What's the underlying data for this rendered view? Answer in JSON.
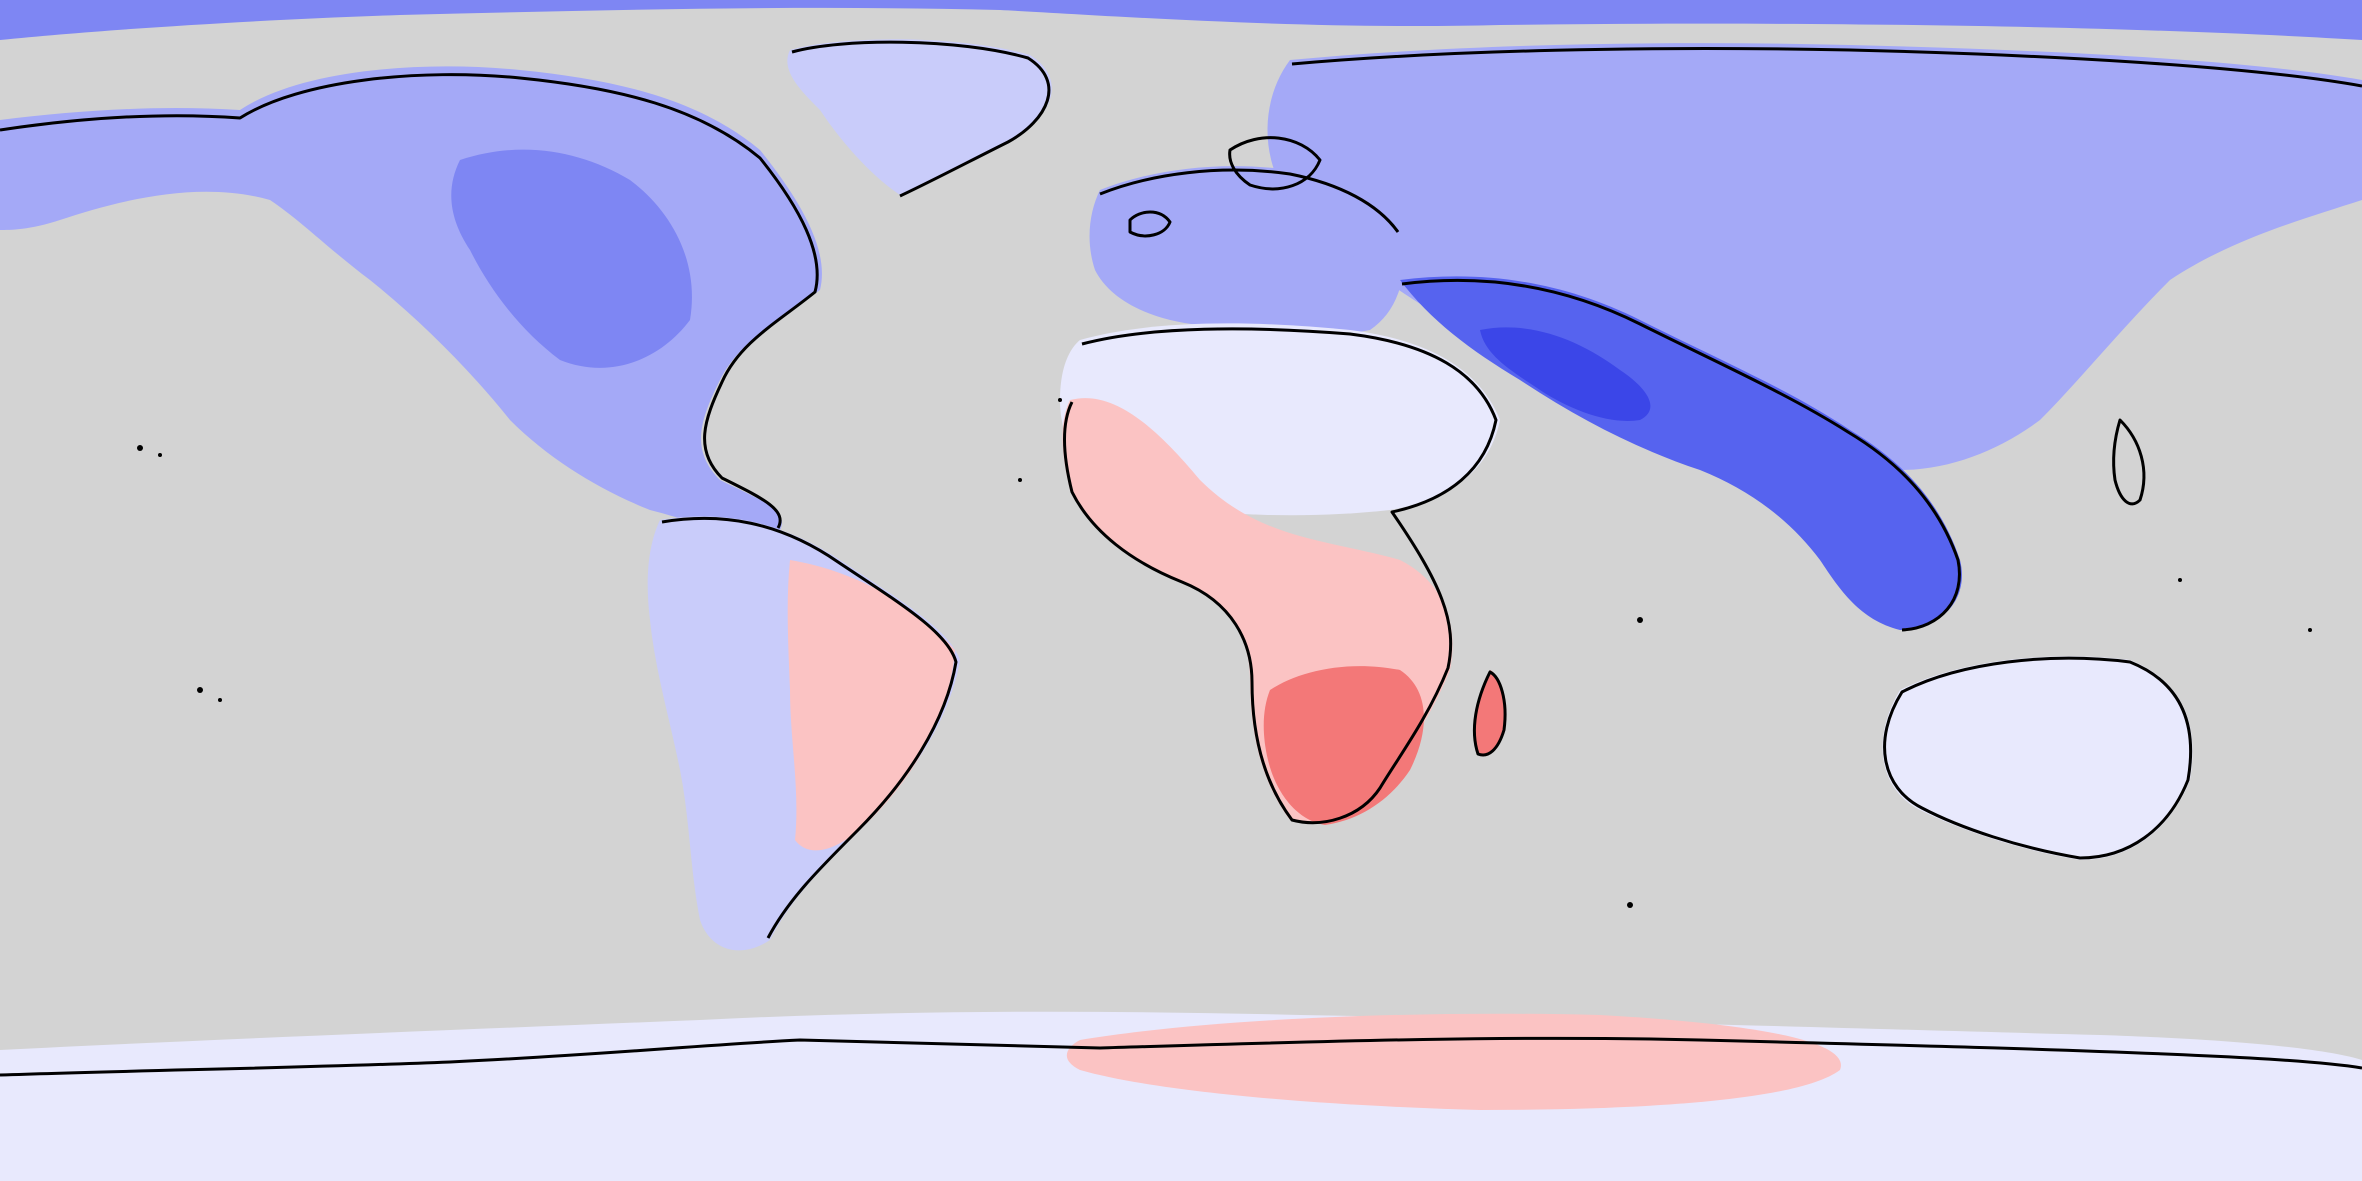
{
  "map": {
    "projection": "equirectangular",
    "lon_range": [
      -180,
      180
    ],
    "lat_range": [
      -90,
      90
    ],
    "ocean_color": "#d3d3d3",
    "coastline_color": "#000000",
    "scale": [
      {
        "level": -5,
        "color": "#3b46e8"
      },
      {
        "level": -4,
        "color": "#5663ef"
      },
      {
        "level": -3,
        "color": "#7e86f3"
      },
      {
        "level": -2,
        "color": "#a4a9f7"
      },
      {
        "level": -1,
        "color": "#c9ccfa"
      },
      {
        "level": 0,
        "color": "#e8e9fd"
      },
      {
        "level": 1,
        "color": "#fde4e4"
      },
      {
        "level": 2,
        "color": "#fbc3c3"
      },
      {
        "level": 3,
        "color": "#f79c9c"
      },
      {
        "level": 4,
        "color": "#f37878"
      },
      {
        "level": 5,
        "color": "#ef5b5b"
      }
    ],
    "regions": [
      {
        "name": "arctic-band",
        "level": -3
      },
      {
        "name": "greenland",
        "level": -1
      },
      {
        "name": "north-america",
        "level": -2
      },
      {
        "name": "canada-core",
        "level": -3
      },
      {
        "name": "south-america",
        "level": -1
      },
      {
        "name": "brazil",
        "level": 2
      },
      {
        "name": "europe",
        "level": -2
      },
      {
        "name": "north-africa",
        "level": 0
      },
      {
        "name": "africa",
        "level": 2
      },
      {
        "name": "southern-africa",
        "level": 4
      },
      {
        "name": "asia",
        "level": -2
      },
      {
        "name": "south-asia",
        "level": -4
      },
      {
        "name": "himalaya",
        "level": -5
      },
      {
        "name": "australia",
        "level": 0
      },
      {
        "name": "antarctica",
        "level": 0
      },
      {
        "name": "antarctic-warm",
        "level": 2
      }
    ]
  }
}
